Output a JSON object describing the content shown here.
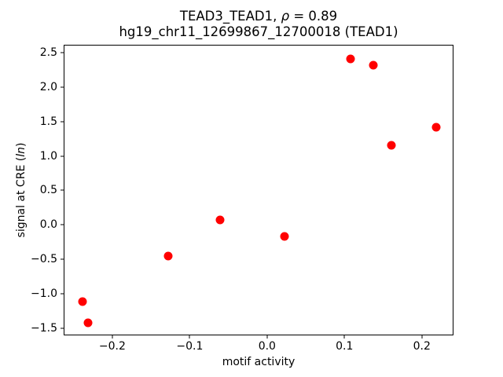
{
  "chart_data": {
    "type": "scatter",
    "title_line1_prefix": "TEAD3_TEAD1, ",
    "title_line1_rho": "ρ",
    "title_line1_suffix": " = 0.89",
    "title_line2": "hg19_chr11_12699867_12700018 (TEAD1)",
    "xlabel": "motif activity",
    "ylabel_prefix": "signal at CRE (",
    "ylabel_italic": "ln",
    "ylabel_suffix": ")",
    "marker_color": "#ff0000",
    "axis_color": "#000000",
    "background_color": "#ffffff",
    "legend": "none",
    "grid": false,
    "xlim": [
      -0.2629,
      0.2409
    ],
    "ylim": [
      -1.6015,
      2.6115
    ],
    "x_ticks": {
      "values": [
        -0.2,
        -0.1,
        0.0,
        0.1,
        0.2
      ],
      "labels": [
        "−0.2",
        "−0.1",
        "0.0",
        "0.1",
        "0.2"
      ]
    },
    "y_ticks": {
      "values": [
        2.5,
        2.0,
        1.5,
        1.0,
        0.5,
        0.0,
        -0.5,
        -1.0,
        -1.5
      ],
      "labels": [
        "2.5",
        "2.0",
        "1.5",
        "1.0",
        "0.5",
        "0.0",
        "−0.5",
        "−1.0",
        "−1.5"
      ]
    },
    "points": [
      {
        "x": -0.24,
        "y": -1.1
      },
      {
        "x": -0.232,
        "y": -1.41
      },
      {
        "x": -0.129,
        "y": -0.44
      },
      {
        "x": -0.062,
        "y": 0.08
      },
      {
        "x": 0.022,
        "y": -0.16
      },
      {
        "x": 0.107,
        "y": 2.42
      },
      {
        "x": 0.136,
        "y": 2.33
      },
      {
        "x": 0.16,
        "y": 1.17
      },
      {
        "x": 0.218,
        "y": 1.43
      }
    ]
  }
}
